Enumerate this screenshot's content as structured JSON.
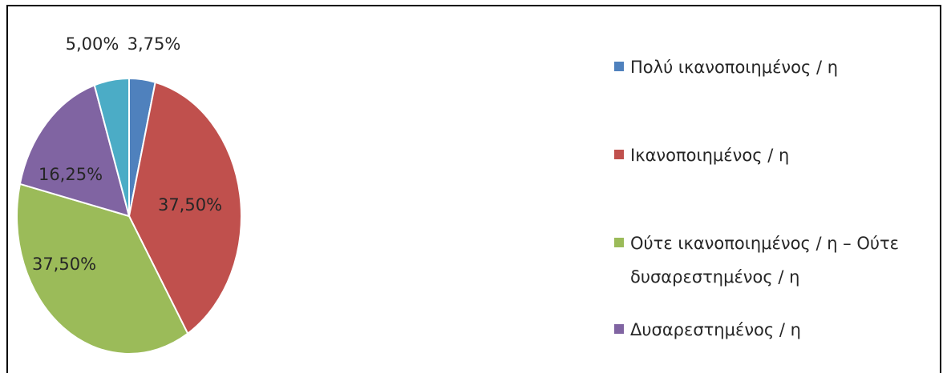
{
  "chart_data": {
    "type": "pie",
    "slices": [
      {
        "label": "Πολύ ικανοποιημένος / η",
        "value": 3.75,
        "display": "3,75%",
        "color": "#4f81bd"
      },
      {
        "label": "Ικανοποιημένος / η",
        "value": 37.5,
        "display": "37,50%",
        "color": "#c0504d"
      },
      {
        "label": "Ούτε ικανοποιημένος / η – Ούτε δυσαρεστημένος / η",
        "value": 37.5,
        "display": "37,50%",
        "color": "#9bbb59"
      },
      {
        "label": "Δυσαρεστημένος / η",
        "value": 16.25,
        "display": "16,25%",
        "color": "#8064a2"
      },
      {
        "label": "",
        "value": 5.0,
        "display": "5,00%",
        "color": "#4bacc6"
      }
    ],
    "legend": {
      "placement": "right",
      "entries": [
        {
          "lines": [
            "Πολύ ικανοποιημένος / η"
          ],
          "color": "#4f81bd"
        },
        {
          "lines": [
            "Ικανοποιημένος / η"
          ],
          "color": "#c0504d"
        },
        {
          "lines": [
            "Ούτε ικανοποιημένος / η – Ούτε",
            "δυσαρεστημένος / η"
          ],
          "color": "#9bbb59"
        },
        {
          "lines": [
            "Δυσαρεστημένος / η"
          ],
          "color": "#8064a2"
        }
      ]
    }
  }
}
